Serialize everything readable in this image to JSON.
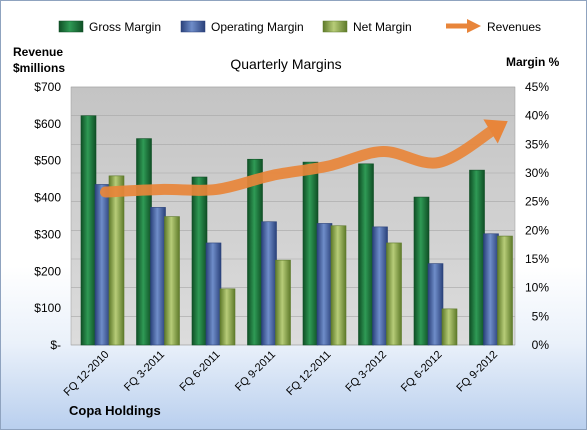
{
  "chart_data": {
    "type": "bar",
    "title": "Quarterly Margins",
    "categories": [
      "FQ 12-2010",
      "FQ 3-2011",
      "FQ 6-2011",
      "FQ 9-2011",
      "FQ 12-2011",
      "FQ 3-2012",
      "FQ 6-2012",
      "FQ 9-2012"
    ],
    "series": [
      {
        "name": "Gross Margin",
        "axis": "right",
        "values": [
          40.0,
          36.0,
          29.3,
          32.4,
          31.9,
          31.6,
          25.8,
          30.5
        ]
      },
      {
        "name": "Operating Margin",
        "axis": "right",
        "values": [
          28.0,
          24.0,
          17.8,
          21.5,
          21.2,
          20.6,
          14.2,
          19.4
        ]
      },
      {
        "name": "Net Margin",
        "axis": "right",
        "values": [
          29.5,
          22.4,
          9.8,
          14.8,
          20.8,
          17.8,
          6.3,
          19.0
        ]
      },
      {
        "name": "Revenues",
        "axis": "left",
        "type": "line",
        "values": [
          415,
          422,
          422,
          460,
          485,
          525,
          495,
          585
        ]
      }
    ],
    "y_left": {
      "label_line1": "Revenue",
      "label_line2": "$millions",
      "range": [
        0,
        700
      ],
      "ticks": [
        "$-",
        "$100",
        "$200",
        "$300",
        "$400",
        "$500",
        "$600",
        "$700"
      ]
    },
    "y_right": {
      "label": "Margin %",
      "range": [
        0,
        45
      ],
      "ticks": [
        "0%",
        "5%",
        "10%",
        "15%",
        "20%",
        "25%",
        "30%",
        "35%",
        "40%",
        "45%"
      ]
    },
    "grid": true,
    "legend_position": "top",
    "colors": {
      "gross_margin": "#1f7a3d",
      "operating_margin": "#3f5fa8",
      "net_margin": "#8ca64a",
      "revenues": "#e8853a",
      "plot_bg": "#d2d2d2"
    }
  },
  "company": "Copa Holdings"
}
